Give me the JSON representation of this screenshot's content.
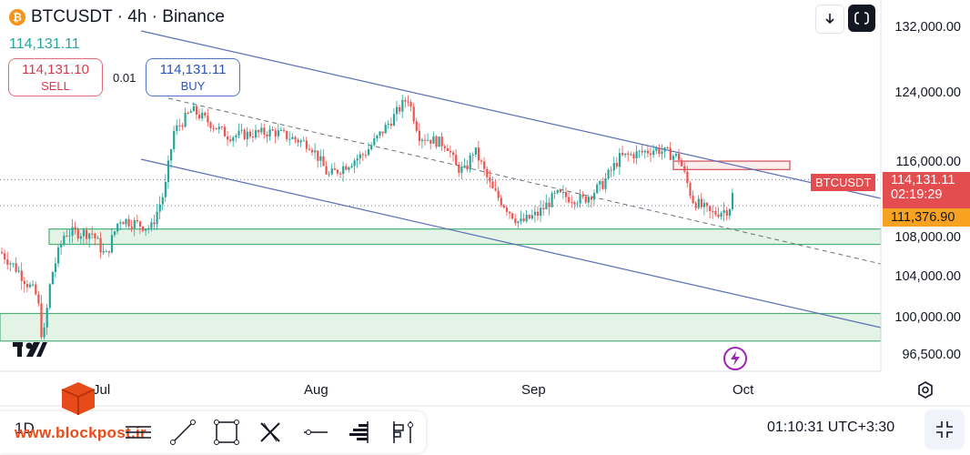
{
  "header": {
    "coin_symbol": "₿",
    "title": "BTCUSDT · 4h · Binance",
    "last_price": "114,131.11"
  },
  "trade": {
    "sell_price": "114,131.10",
    "sell_label": "SELL",
    "lot": "0.01",
    "buy_price": "114,131.11",
    "buy_label": "BUY"
  },
  "axis": {
    "y_ticks": [
      "132,000.00",
      "124,000.00",
      "116,000.00",
      "108,000.00",
      "104,000.00",
      "100,000.00",
      "96,500.00"
    ],
    "x_ticks": [
      "Jul",
      "Aug",
      "Sep",
      "Oct"
    ]
  },
  "price_tags": {
    "symbol": "BTCUSDT",
    "price": "114,131.11",
    "countdown": "02:19:29",
    "level": "111,376.90"
  },
  "footer": {
    "interval": "1D",
    "watermark": "www.blockpost.ir",
    "time": "01:10:31 UTC+3:30"
  },
  "icons": [
    "bitcoin-icon",
    "download-icon",
    "fullscreen-icon",
    "tradingview-logo",
    "lightning-icon",
    "settings-icon",
    "horizontal-lines-icon",
    "trend-line-icon",
    "rectangle-icon",
    "xabcd-pattern-icon",
    "ray-icon",
    "volume-profile-icon",
    "long-position-icon",
    "collapse-icon"
  ],
  "colors": {
    "up": "#26a69a",
    "down": "#ef5350",
    "channel": "#5b6fb5",
    "zone_fill": "#e3f4e6",
    "zone_border": "#4caf78",
    "sell": "#d63a4c",
    "buy": "#2c55b8",
    "tag_red": "#e34d50",
    "tag_orange": "#f7a221"
  },
  "chart_data": {
    "type": "candlestick",
    "x_axis_ticks": [
      "Jul",
      "Aug",
      "Sep",
      "Oct"
    ],
    "y_axis_ticks": [
      96500,
      100000,
      104000,
      108000,
      116000,
      124000,
      132000
    ],
    "current_price": 114131.11,
    "marked_level": 111376.9,
    "close_path": [
      [
        0,
        106500
      ],
      [
        20,
        104500
      ],
      [
        40,
        102000
      ],
      [
        46,
        97500
      ],
      [
        55,
        104000
      ],
      [
        70,
        108500
      ],
      [
        100,
        108500
      ],
      [
        115,
        106000
      ],
      [
        130,
        110000
      ],
      [
        165,
        109000
      ],
      [
        180,
        113000
      ],
      [
        190,
        119500
      ],
      [
        210,
        122000
      ],
      [
        250,
        119000
      ],
      [
        300,
        119500
      ],
      [
        340,
        118000
      ],
      [
        360,
        114500
      ],
      [
        400,
        117000
      ],
      [
        430,
        121000
      ],
      [
        447,
        123500
      ],
      [
        460,
        119000
      ],
      [
        490,
        118000
      ],
      [
        500,
        115500
      ],
      [
        510,
        115000
      ],
      [
        520,
        117500
      ],
      [
        540,
        113000
      ],
      [
        570,
        109500
      ],
      [
        590,
        110500
      ],
      [
        610,
        112500
      ],
      [
        640,
        112000
      ],
      [
        660,
        113500
      ],
      [
        680,
        116500
      ],
      [
        720,
        117500
      ],
      [
        745,
        116500
      ],
      [
        760,
        112000
      ],
      [
        780,
        110500
      ],
      [
        800,
        111000
      ],
      [
        808,
        114131
      ]
    ],
    "support_zones": [
      [
        107300,
        108900
      ],
      [
        97800,
        100400
      ]
    ],
    "resistance_zone": [
      115200,
      116100
    ]
  }
}
